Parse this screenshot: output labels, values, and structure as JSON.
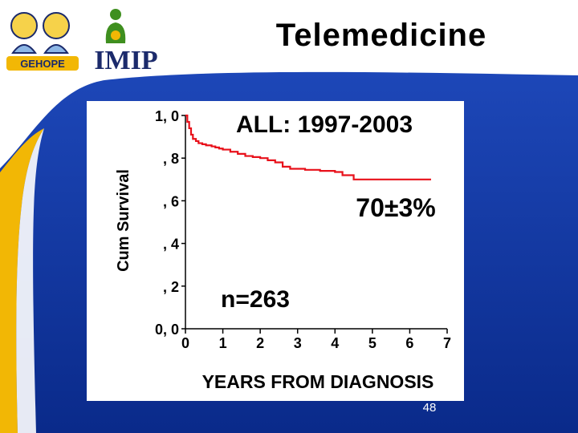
{
  "slide": {
    "title": "Telemedicine",
    "page_number": "48",
    "logos": {
      "left": "GEHOPE",
      "right": "IMIP"
    },
    "colors": {
      "background": "#ffffff",
      "band": "#0a2a8a",
      "band_light": "#1d47b8",
      "curve": "#e8101a",
      "plot_bg": "#ffffff",
      "logo_yellow": "#f2b705",
      "logo_green": "#3f8f1f",
      "logo_navy": "#1b2a6b"
    }
  },
  "chart_data": {
    "type": "line",
    "title": "ALL: 1997-2003",
    "xlabel": "YEARS FROM DIAGNOSIS",
    "ylabel": "Cum Survival",
    "xlim": [
      0,
      7
    ],
    "ylim": [
      0,
      1
    ],
    "xticks": [
      "0",
      "1",
      "2",
      "3",
      "4",
      "5",
      "6",
      "7"
    ],
    "yticks": [
      "0, 0",
      ", 2",
      ", 4",
      ", 6",
      ", 8",
      "1, 0"
    ],
    "annotations": {
      "survival": "70±3%",
      "n": "n=263"
    },
    "series": [
      {
        "step": true,
        "x": [
          0,
          0.05,
          0.1,
          0.15,
          0.2,
          0.28,
          0.35,
          0.45,
          0.55,
          0.7,
          0.8,
          0.9,
          1.0,
          1.2,
          1.4,
          1.6,
          1.8,
          2.0,
          2.2,
          2.4,
          2.6,
          2.8,
          3.2,
          3.6,
          4.0,
          4.2,
          4.5,
          5.0,
          5.5,
          6.0,
          6.5
        ],
        "y": [
          1.0,
          0.97,
          0.94,
          0.91,
          0.89,
          0.88,
          0.87,
          0.865,
          0.86,
          0.855,
          0.85,
          0.845,
          0.84,
          0.83,
          0.82,
          0.81,
          0.805,
          0.8,
          0.79,
          0.78,
          0.76,
          0.75,
          0.745,
          0.74,
          0.735,
          0.72,
          0.7,
          0.7,
          0.7,
          0.7,
          0.7
        ]
      }
    ]
  }
}
